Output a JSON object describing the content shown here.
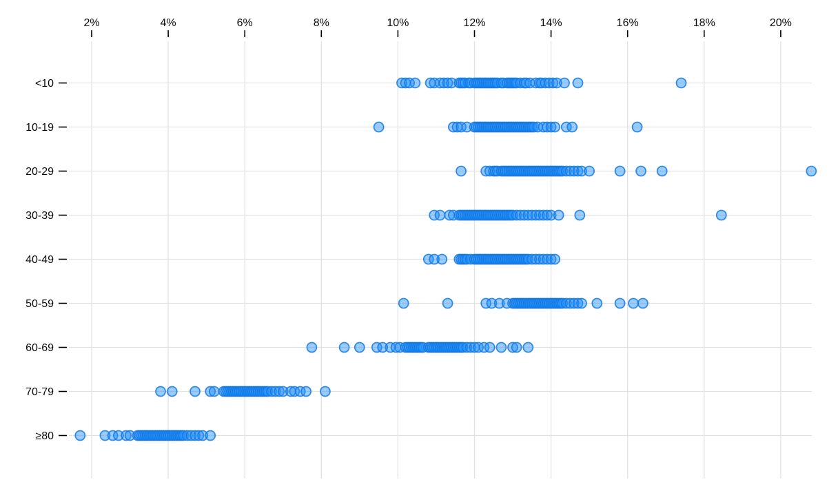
{
  "chart_data": {
    "type": "scatter",
    "variant": "horizontal-strip-plot",
    "title": "",
    "xlabel": "",
    "ylabel": "",
    "grid": true,
    "legend": "none",
    "x_axis": {
      "position": "top",
      "tick_values": [
        2,
        4,
        6,
        8,
        10,
        12,
        14,
        16,
        18,
        20
      ],
      "tick_labels": [
        "2%",
        "4%",
        "6%",
        "8%",
        "10%",
        "12%",
        "14%",
        "16%",
        "18%",
        "20%"
      ],
      "unit": "percent",
      "data_range": [
        1.7,
        20.8
      ]
    },
    "y_axis": {
      "position": "left",
      "categories": [
        "<10",
        "10-19",
        "20-29",
        "30-39",
        "40-49",
        "50-59",
        "60-69",
        "70-79",
        "≥80"
      ]
    },
    "colors": {
      "point_fill": "#1e90ff",
      "point_fill_opacity": 0.45,
      "point_stroke": "#1679e0",
      "point_stroke_opacity": 0.85,
      "gridline": "#e2e2e2",
      "axis_tick": "#000000",
      "label_text": "#0a0a0a"
    },
    "series": [
      {
        "category": "<10",
        "values": [
          10.1,
          10.2,
          10.3,
          10.45,
          10.85,
          10.95,
          11.1,
          11.2,
          11.3,
          11.4,
          11.6,
          11.65,
          11.7,
          11.75,
          11.85,
          11.9,
          12.0,
          12.05,
          12.1,
          12.15,
          12.2,
          12.25,
          12.3,
          12.35,
          12.4,
          12.45,
          12.5,
          12.55,
          12.6,
          12.7,
          12.75,
          12.85,
          12.9,
          12.95,
          13.0,
          13.05,
          13.1,
          13.2,
          13.3,
          13.35,
          13.45,
          13.6,
          13.7,
          13.75,
          13.85,
          13.95,
          14.05,
          14.15,
          14.35,
          14.7,
          17.4
        ]
      },
      {
        "category": "10-19",
        "values": [
          9.5,
          11.45,
          11.55,
          11.65,
          11.8,
          12.0,
          12.05,
          12.1,
          12.15,
          12.2,
          12.25,
          12.3,
          12.35,
          12.4,
          12.45,
          12.5,
          12.55,
          12.6,
          12.65,
          12.7,
          12.75,
          12.8,
          12.85,
          12.9,
          12.95,
          13.0,
          13.05,
          13.1,
          13.15,
          13.2,
          13.25,
          13.3,
          13.35,
          13.4,
          13.45,
          13.5,
          13.55,
          13.65,
          13.8,
          13.9,
          14.0,
          14.1,
          14.4,
          14.55,
          16.25
        ]
      },
      {
        "category": "20-29",
        "values": [
          11.65,
          12.3,
          12.4,
          12.5,
          12.55,
          12.6,
          12.7,
          12.75,
          12.8,
          12.85,
          12.9,
          12.95,
          13.0,
          13.05,
          13.1,
          13.15,
          13.2,
          13.25,
          13.3,
          13.35,
          13.4,
          13.45,
          13.5,
          13.55,
          13.6,
          13.65,
          13.7,
          13.75,
          13.8,
          13.85,
          13.9,
          13.95,
          14.0,
          14.05,
          14.1,
          14.15,
          14.2,
          14.25,
          14.3,
          14.4,
          14.5,
          14.6,
          14.7,
          14.8,
          15.0,
          15.8,
          16.35,
          16.9,
          20.8
        ]
      },
      {
        "category": "30-39",
        "values": [
          10.95,
          11.1,
          11.35,
          11.45,
          11.6,
          11.65,
          11.7,
          11.75,
          11.8,
          11.85,
          11.9,
          11.95,
          12.0,
          12.05,
          12.1,
          12.15,
          12.2,
          12.25,
          12.3,
          12.35,
          12.4,
          12.45,
          12.5,
          12.55,
          12.6,
          12.65,
          12.7,
          12.75,
          12.8,
          12.85,
          12.9,
          12.95,
          13.0,
          13.1,
          13.2,
          13.3,
          13.4,
          13.5,
          13.6,
          13.7,
          13.8,
          13.9,
          14.0,
          14.2,
          14.75,
          18.45
        ]
      },
      {
        "category": "40-49",
        "values": [
          10.8,
          10.95,
          11.15,
          11.6,
          11.65,
          11.7,
          11.75,
          11.8,
          11.9,
          12.0,
          12.05,
          12.1,
          12.15,
          12.2,
          12.25,
          12.3,
          12.35,
          12.4,
          12.45,
          12.5,
          12.55,
          12.6,
          12.65,
          12.7,
          12.75,
          12.8,
          12.85,
          12.9,
          12.95,
          13.0,
          13.05,
          13.1,
          13.15,
          13.2,
          13.25,
          13.3,
          13.35,
          13.4,
          13.5,
          13.6,
          13.7,
          13.8,
          13.9,
          14.0,
          14.1
        ]
      },
      {
        "category": "50-59",
        "values": [
          10.15,
          11.3,
          12.3,
          12.45,
          12.65,
          12.85,
          13.0,
          13.05,
          13.1,
          13.15,
          13.2,
          13.25,
          13.3,
          13.35,
          13.4,
          13.45,
          13.5,
          13.55,
          13.6,
          13.65,
          13.7,
          13.75,
          13.8,
          13.85,
          13.9,
          13.95,
          14.0,
          14.05,
          14.1,
          14.15,
          14.2,
          14.25,
          14.3,
          14.4,
          14.5,
          14.6,
          14.7,
          14.8,
          15.2,
          15.8,
          16.15,
          16.4
        ]
      },
      {
        "category": "60-69",
        "values": [
          7.75,
          8.6,
          9.0,
          9.45,
          9.6,
          9.8,
          9.95,
          10.05,
          10.2,
          10.25,
          10.3,
          10.35,
          10.4,
          10.45,
          10.5,
          10.55,
          10.6,
          10.65,
          10.8,
          10.85,
          10.9,
          10.95,
          11.0,
          11.05,
          11.1,
          11.15,
          11.2,
          11.25,
          11.3,
          11.35,
          11.4,
          11.45,
          11.5,
          11.55,
          11.6,
          11.65,
          11.7,
          11.8,
          11.9,
          12.0,
          12.1,
          12.25,
          12.4,
          12.7,
          13.0,
          13.1,
          13.4
        ]
      },
      {
        "category": "70-79",
        "values": [
          3.8,
          4.1,
          4.7,
          5.1,
          5.2,
          5.45,
          5.5,
          5.55,
          5.6,
          5.65,
          5.7,
          5.75,
          5.8,
          5.85,
          5.9,
          5.95,
          6.0,
          6.05,
          6.1,
          6.15,
          6.2,
          6.25,
          6.3,
          6.35,
          6.4,
          6.45,
          6.5,
          6.55,
          6.6,
          6.7,
          6.8,
          6.9,
          7.0,
          7.2,
          7.3,
          7.45,
          7.6,
          8.1
        ]
      },
      {
        "category": "≥80",
        "values": [
          1.7,
          2.35,
          2.55,
          2.7,
          2.9,
          3.0,
          3.2,
          3.25,
          3.3,
          3.35,
          3.4,
          3.45,
          3.5,
          3.55,
          3.6,
          3.65,
          3.7,
          3.75,
          3.8,
          3.85,
          3.9,
          3.95,
          4.0,
          4.05,
          4.1,
          4.15,
          4.2,
          4.25,
          4.3,
          4.35,
          4.4,
          4.5,
          4.6,
          4.7,
          4.8,
          4.9,
          5.1
        ]
      }
    ]
  }
}
